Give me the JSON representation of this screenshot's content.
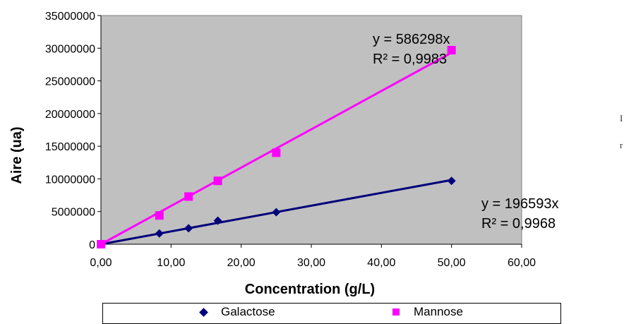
{
  "chart_data": {
    "type": "scatter",
    "xlabel": "Concentration (g/L)",
    "ylabel": "Aire (ua)",
    "xlim": [
      0,
      60
    ],
    "ylim": [
      0,
      35000000
    ],
    "x_ticks": [
      "0,00",
      "10,00",
      "20,00",
      "30,00",
      "40,00",
      "50,00",
      "60,00"
    ],
    "y_ticks": [
      "0",
      "5000000",
      "10000000",
      "15000000",
      "20000000",
      "25000000",
      "30000000",
      "35000000"
    ],
    "grid": false,
    "plot_background": "#c0c0c0",
    "legend_position": "bottom",
    "series": [
      {
        "name": "Galactose",
        "color": "#00007a",
        "marker": "diamond",
        "points": [
          {
            "x": 0,
            "y": 0
          },
          {
            "x": 8.33,
            "y": 1650000
          },
          {
            "x": 12.5,
            "y": 2450000
          },
          {
            "x": 16.67,
            "y": 3600000
          },
          {
            "x": 25,
            "y": 4900000
          },
          {
            "x": 50,
            "y": 9700000
          }
        ],
        "trendline": {
          "slope": 196593,
          "equation": "y = 196593x",
          "r2": "R² = 0,9968"
        }
      },
      {
        "name": "Mannose",
        "color": "#ff00ff",
        "marker": "square",
        "points": [
          {
            "x": 0,
            "y": 0
          },
          {
            "x": 8.33,
            "y": 4400000
          },
          {
            "x": 12.5,
            "y": 7300000
          },
          {
            "x": 16.67,
            "y": 9700000
          },
          {
            "x": 25,
            "y": 14000000
          },
          {
            "x": 50,
            "y": 29700000
          }
        ],
        "trendline": {
          "slope": 586298,
          "equation": "y = 586298x",
          "r2": "R² = 0,9983"
        }
      }
    ]
  },
  "side_text": [
    "I",
    "r"
  ]
}
